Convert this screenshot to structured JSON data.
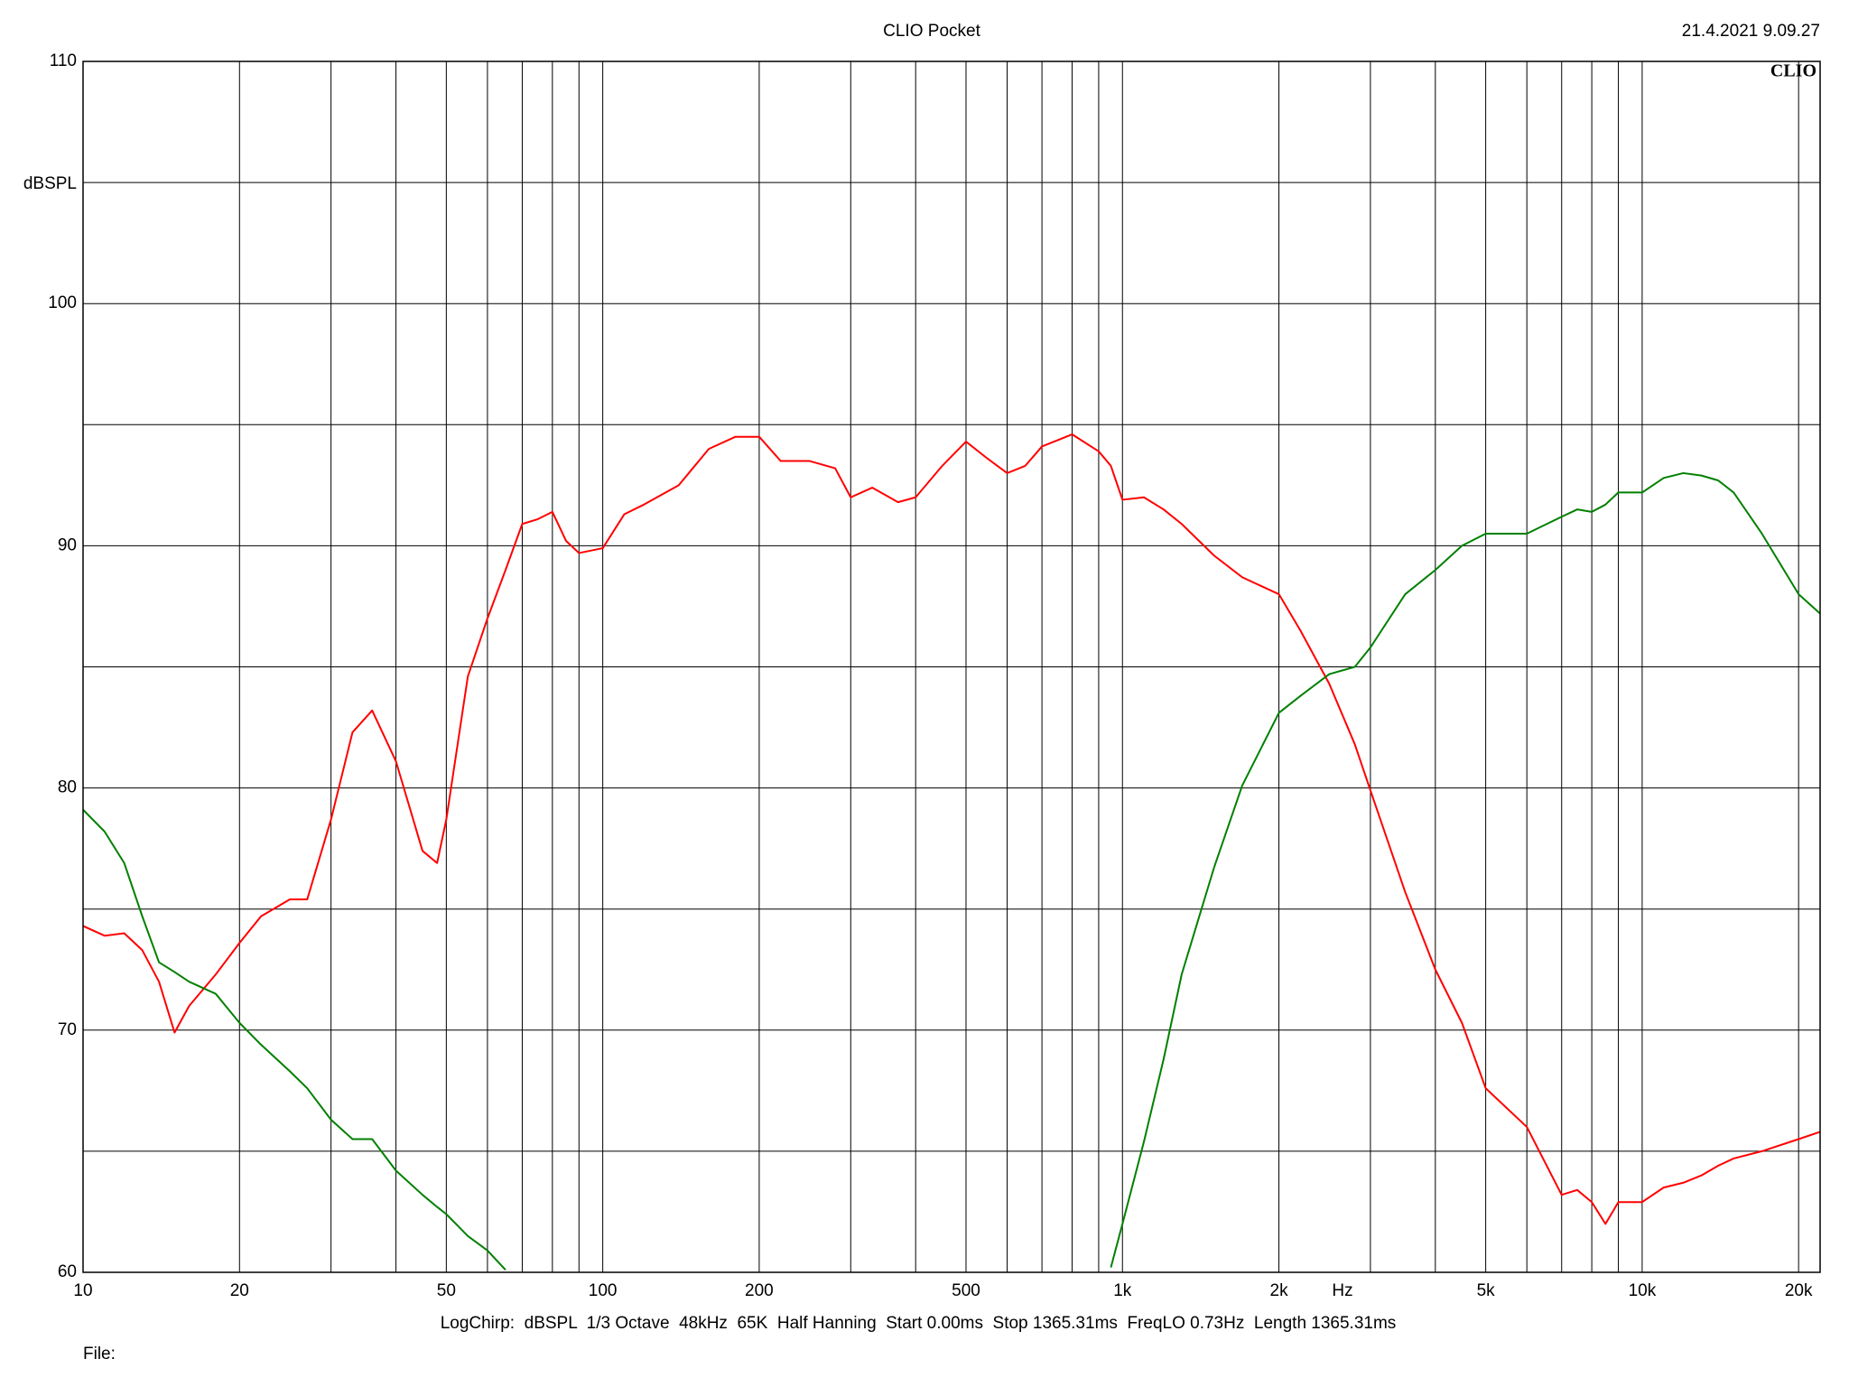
{
  "chart_data": {
    "type": "line",
    "title": "CLIO Pocket",
    "timestamp": "21.4.2021 9.09.27",
    "logo": "CLIO",
    "y_label": "dBSPL",
    "x_label": "Hz",
    "footer": "LogChirp:  dBSPL  1/3 Octave  48kHz  65K  Half Hanning  Start 0.00ms  Stop 1365.31ms  FreqLO 0.73Hz  Length 1365.31ms",
    "file_label": "File:",
    "x_log": true,
    "grid": true,
    "xlim": [
      10,
      22000
    ],
    "ylim": [
      60,
      110
    ],
    "xticks": [
      10,
      20,
      50,
      100,
      200,
      500,
      {
        "value": 1000,
        "label": "1k"
      },
      {
        "value": 2000,
        "label": "2k"
      },
      {
        "value": 5000,
        "label": "5k"
      },
      {
        "value": 10000,
        "label": "10k"
      },
      {
        "value": 20000,
        "label": "20k"
      }
    ],
    "x_minor_ticks": [
      30,
      40,
      60,
      70,
      80,
      90,
      300,
      400,
      600,
      700,
      800,
      900,
      3000,
      4000,
      6000,
      7000,
      8000,
      9000
    ],
    "yticks": [
      60,
      70,
      80,
      90,
      100,
      110
    ],
    "y_minor_ticks": [
      65,
      75,
      85,
      95,
      105
    ],
    "x": [
      10,
      11,
      12,
      13,
      14,
      15,
      16,
      18,
      20,
      22,
      25,
      27,
      30,
      33,
      36,
      40,
      45,
      48,
      50,
      55,
      60,
      65,
      70,
      75,
      80,
      85,
      90,
      100,
      110,
      120,
      140,
      160,
      180,
      200,
      220,
      250,
      280,
      300,
      330,
      370,
      400,
      450,
      500,
      550,
      600,
      650,
      700,
      800,
      900,
      950,
      1000,
      1100,
      1200,
      1300,
      1500,
      1700,
      2000,
      2200,
      2500,
      2800,
      3000,
      3500,
      4000,
      4500,
      5000,
      6000,
      7000,
      7500,
      8000,
      8500,
      9000,
      10000,
      11000,
      12000,
      13000,
      14000,
      15000,
      17000,
      20000,
      22000
    ],
    "series": [
      {
        "color": "#ff0000",
        "values": [
          74.3,
          73.9,
          74.0,
          73.3,
          72.0,
          69.9,
          71.0,
          72.3,
          73.6,
          74.7,
          75.4,
          75.4,
          78.7,
          82.3,
          83.2,
          81.1,
          77.4,
          76.9,
          78.7,
          84.6,
          87.0,
          89.0,
          90.9,
          91.1,
          91.4,
          90.2,
          89.7,
          89.9,
          91.3,
          91.7,
          92.5,
          94.0,
          94.5,
          94.5,
          93.5,
          93.5,
          93.2,
          92.0,
          92.4,
          91.8,
          92.0,
          93.3,
          94.3,
          93.6,
          93.0,
          93.3,
          94.1,
          94.6,
          93.9,
          93.3,
          91.9,
          92.0,
          91.5,
          90.9,
          89.6,
          88.7,
          88.0,
          86.5,
          84.3,
          81.8,
          79.9,
          75.7,
          72.5,
          70.3,
          67.6,
          66.0,
          63.2,
          63.4,
          62.9,
          62.0,
          62.9,
          62.9,
          63.5,
          63.7,
          64.0,
          64.4,
          64.7,
          65.0,
          65.5,
          65.8
        ]
      },
      {
        "color": "#008000",
        "values": [
          79.1,
          78.2,
          76.9,
          74.7,
          72.8,
          72.4,
          72.0,
          71.5,
          70.3,
          69.4,
          68.3,
          67.6,
          66.3,
          65.5,
          65.5,
          64.2,
          63.2,
          62.7,
          62.4,
          61.5,
          60.9,
          60.1,
          null,
          null,
          null,
          null,
          null,
          null,
          null,
          null,
          null,
          null,
          null,
          null,
          null,
          null,
          null,
          null,
          null,
          null,
          null,
          null,
          null,
          null,
          null,
          null,
          null,
          null,
          null,
          60.2,
          62.0,
          65.4,
          68.8,
          72.3,
          76.7,
          80.1,
          83.1,
          83.8,
          84.7,
          85.0,
          85.8,
          88.0,
          89.0,
          90.0,
          90.5,
          90.5,
          91.2,
          91.5,
          91.4,
          91.7,
          92.2,
          92.2,
          92.8,
          93.0,
          92.9,
          92.7,
          92.2,
          90.5,
          88.0,
          87.2
        ]
      }
    ]
  }
}
